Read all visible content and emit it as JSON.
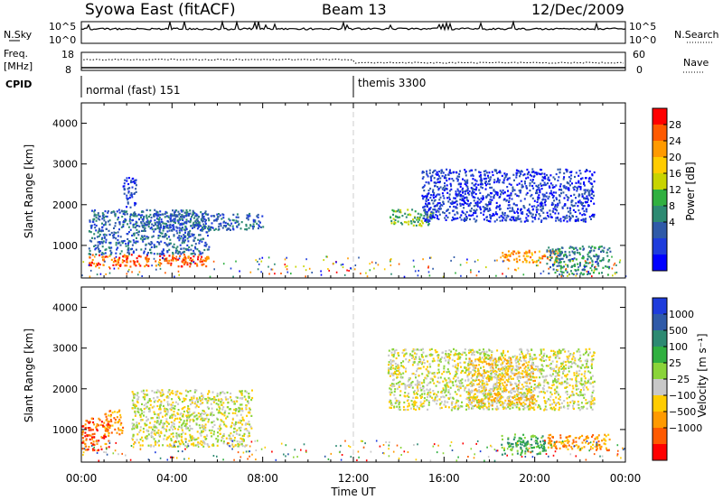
{
  "header": {
    "station": "Syowa East (fitACF)",
    "beam": "Beam 13",
    "date": "12/Dec/2009"
  },
  "strips": {
    "nsky_label": "N.Sky",
    "nsky_ticks": [
      "10^5",
      "10^0"
    ],
    "nsearch_label": "N.Search",
    "freq_label_line1": "Freq.",
    "freq_label_line2": "[MHz]",
    "freq_ticks": [
      "18",
      "8"
    ],
    "nave_label": "Nave",
    "nave_ticks": [
      "60",
      "0"
    ],
    "cpid_label": "CPID",
    "cpid_segments": [
      "normal (fast) 151",
      "themis 3300"
    ]
  },
  "chart_data": [
    {
      "type": "heatmap",
      "name": "power-panel",
      "ylabel": "Slant Range [km]",
      "xlabel": "",
      "x_ticks": [
        "00:00",
        "04:00",
        "08:00",
        "12:00",
        "16:00",
        "20:00",
        "00:00"
      ],
      "xlim": [
        0,
        24
      ],
      "ylim": [
        200,
        4500
      ],
      "y_ticks": [
        1000,
        2000,
        3000,
        4000
      ],
      "colorbar": {
        "label": "Power [dB]",
        "ticks": [
          "28",
          "24",
          "20",
          "16",
          "12",
          "8",
          "4"
        ],
        "colors": [
          "#ff0000",
          "#ff5a00",
          "#ff9a00",
          "#ffcc00",
          "#c8d400",
          "#30b040",
          "#2d8a72",
          "#2f5aa8",
          "#1e3cdc",
          "#0000ff"
        ]
      },
      "regions": [
        {
          "t": [
            0.3,
            5.6
          ],
          "r": [
            500,
            800
          ],
          "level": 1
        },
        {
          "t": [
            0.3,
            5.6
          ],
          "r": [
            800,
            1900
          ],
          "level": 7
        },
        {
          "t": [
            1.8,
            2.4
          ],
          "r": [
            1900,
            2700
          ],
          "level": 8
        },
        {
          "t": [
            2.5,
            8.0
          ],
          "r": [
            1400,
            1800
          ],
          "level": 7
        },
        {
          "t": [
            13.5,
            15.5
          ],
          "r": [
            1500,
            1900
          ],
          "level": 5
        },
        {
          "t": [
            15.0,
            22.6
          ],
          "r": [
            1600,
            2900
          ],
          "level": 8
        },
        {
          "t": [
            18.5,
            21.0
          ],
          "r": [
            600,
            900
          ],
          "level": 2
        },
        {
          "t": [
            20.5,
            23.3
          ],
          "r": [
            300,
            1000
          ],
          "level": 6
        }
      ]
    },
    {
      "type": "heatmap",
      "name": "velocity-panel",
      "ylabel": "Slant Range [km]",
      "xlabel": "Time UT",
      "x_ticks": [
        "00:00",
        "04:00",
        "08:00",
        "12:00",
        "16:00",
        "20:00",
        "00:00"
      ],
      "xlim": [
        0,
        24
      ],
      "ylim": [
        200,
        4500
      ],
      "y_ticks": [
        1000,
        2000,
        3000,
        4000
      ],
      "colorbar": {
        "label": "Velocity [m s⁻¹]",
        "ticks": [
          "1000",
          "500",
          "100",
          "25",
          "−25",
          "−100",
          "−500",
          "−1000"
        ],
        "colors": [
          "#1e3cdc",
          "#2f5aa8",
          "#2d8a72",
          "#30b040",
          "#8ad43a",
          "#c8c8c8",
          "#ffcc00",
          "#ff9a00",
          "#ff5a00",
          "#ff0000"
        ]
      },
      "regions": [
        {
          "t": [
            0.0,
            1.2
          ],
          "r": [
            500,
            1300
          ],
          "level": 8
        },
        {
          "t": [
            1.0,
            1.8
          ],
          "r": [
            900,
            1500
          ],
          "level": 7
        },
        {
          "t": [
            2.2,
            7.5
          ],
          "r": [
            600,
            2000
          ],
          "level": 5
        },
        {
          "t": [
            13.5,
            22.6
          ],
          "r": [
            1500,
            3000
          ],
          "level": 5
        },
        {
          "t": [
            17.0,
            20.0
          ],
          "r": [
            1600,
            2800
          ],
          "level": 6
        },
        {
          "t": [
            20.5,
            23.3
          ],
          "r": [
            500,
            900
          ],
          "level": 7
        },
        {
          "t": [
            18.5,
            20.5
          ],
          "r": [
            400,
            900
          ],
          "level": 3
        }
      ]
    }
  ]
}
